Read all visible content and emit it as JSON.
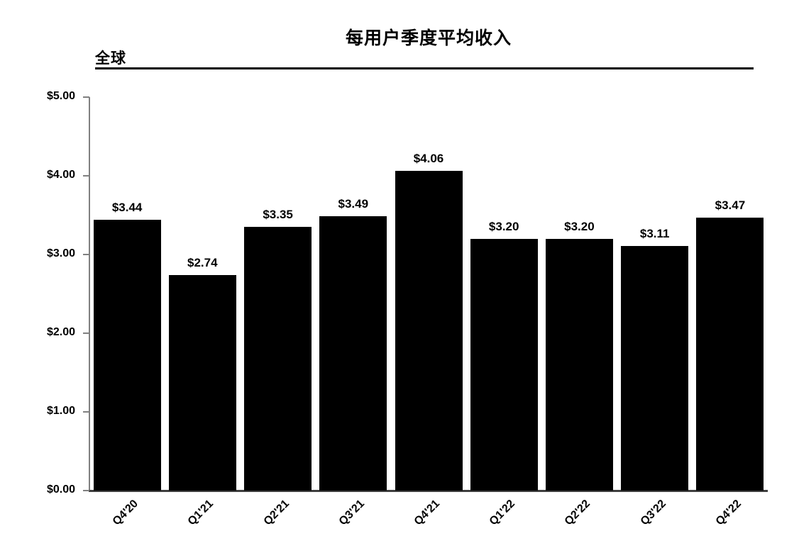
{
  "chart_data": {
    "type": "bar",
    "title": "每用户季度平均收入",
    "subtitle": "全球",
    "categories": [
      "Q4'20",
      "Q1'21",
      "Q2'21",
      "Q3'21",
      "Q4'21",
      "Q1'22",
      "Q2'22",
      "Q3'22",
      "Q4'22"
    ],
    "values": [
      3.44,
      2.74,
      3.35,
      3.49,
      4.06,
      3.2,
      3.2,
      3.11,
      3.47
    ],
    "value_labels": [
      "$3.44",
      "$2.74",
      "$3.35",
      "$3.49",
      "$4.06",
      "$3.20",
      "$3.20",
      "$3.11",
      "$3.47"
    ],
    "y_ticks": [
      "$5.00",
      "$4.00",
      "$3.00",
      "$2.00",
      "$1.00",
      "$0.00"
    ],
    "ylim": [
      0,
      5
    ],
    "xlabel": "",
    "ylabel": "",
    "grid": "off",
    "legend": "none",
    "bar_color": "#000000",
    "axis_color": "#808080",
    "baseline_color": "#3f3f3f",
    "text_color": "#000000",
    "background_color": "#ffffff"
  }
}
